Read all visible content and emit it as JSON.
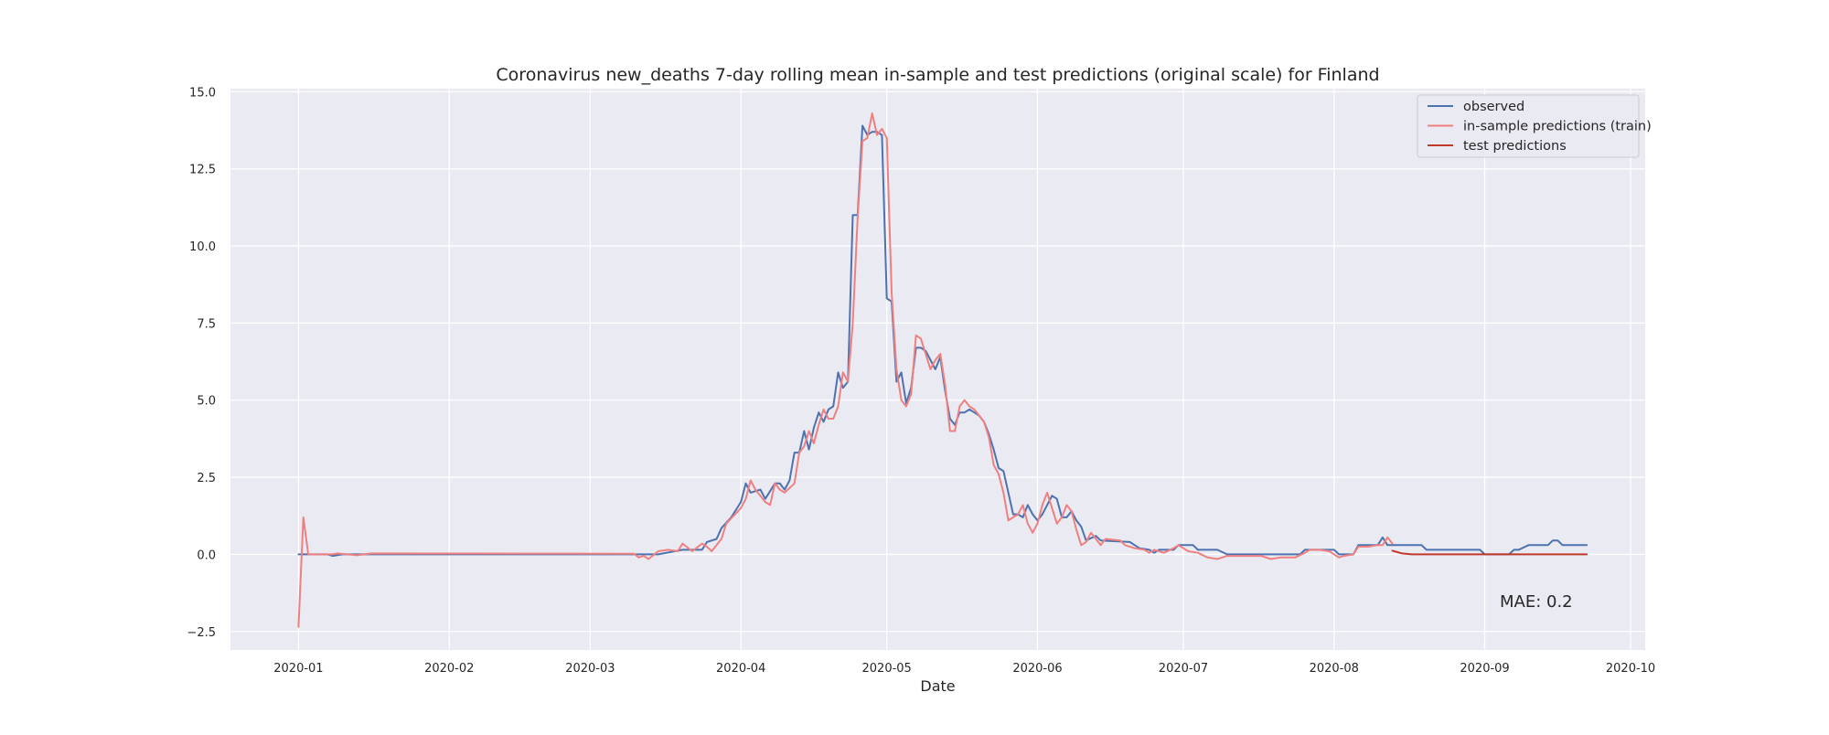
{
  "chart_data": {
    "type": "line",
    "title": "Coronavirus new_deaths 7-day rolling mean in-sample and test predictions (original scale) for Finland",
    "xlabel": "Date",
    "ylabel": "",
    "x_type": "date",
    "xlim": [
      "2019-12-18",
      "2020-10-04"
    ],
    "ylim": [
      -3.1,
      15.1
    ],
    "grid": true,
    "legend_position": "top-right",
    "x_ticks": [
      "2020-01",
      "2020-02",
      "2020-03",
      "2020-04",
      "2020-05",
      "2020-06",
      "2020-07",
      "2020-08",
      "2020-09",
      "2020-10"
    ],
    "y_ticks": [
      "−2.5",
      "0.0",
      "2.5",
      "5.0",
      "7.5",
      "10.0",
      "12.5",
      "15.0"
    ],
    "annotation": "MAE: 0.2",
    "series": [
      {
        "name": "observed",
        "color": "#4c72b0",
        "points": [
          [
            "2020-01-01",
            0
          ],
          [
            "2020-01-07",
            0
          ],
          [
            "2020-01-08",
            -0.05
          ],
          [
            "2020-01-10",
            0
          ],
          [
            "2020-03-15",
            0
          ],
          [
            "2020-03-20",
            0.15
          ],
          [
            "2020-03-24",
            0.15
          ],
          [
            "2020-03-25",
            0.4
          ],
          [
            "2020-03-27",
            0.5
          ],
          [
            "2020-03-28",
            0.85
          ],
          [
            "2020-03-30",
            1.2
          ],
          [
            "2020-04-01",
            1.7
          ],
          [
            "2020-04-02",
            2.3
          ],
          [
            "2020-04-03",
            2.0
          ],
          [
            "2020-04-05",
            2.1
          ],
          [
            "2020-04-06",
            1.8
          ],
          [
            "2020-04-08",
            2.3
          ],
          [
            "2020-04-09",
            2.3
          ],
          [
            "2020-04-10",
            2.1
          ],
          [
            "2020-04-11",
            2.4
          ],
          [
            "2020-04-12",
            3.3
          ],
          [
            "2020-04-13",
            3.3
          ],
          [
            "2020-04-14",
            4.0
          ],
          [
            "2020-04-15",
            3.4
          ],
          [
            "2020-04-16",
            4.1
          ],
          [
            "2020-04-17",
            4.6
          ],
          [
            "2020-04-18",
            4.3
          ],
          [
            "2020-04-19",
            4.7
          ],
          [
            "2020-04-20",
            4.8
          ],
          [
            "2020-04-21",
            5.9
          ],
          [
            "2020-04-22",
            5.4
          ],
          [
            "2020-04-23",
            5.6
          ],
          [
            "2020-04-24",
            11.0
          ],
          [
            "2020-04-25",
            11.0
          ],
          [
            "2020-04-26",
            13.9
          ],
          [
            "2020-04-27",
            13.6
          ],
          [
            "2020-04-28",
            13.7
          ],
          [
            "2020-04-29",
            13.7
          ],
          [
            "2020-04-30",
            13.6
          ],
          [
            "2020-05-01",
            8.3
          ],
          [
            "2020-05-02",
            8.2
          ],
          [
            "2020-05-03",
            5.6
          ],
          [
            "2020-05-04",
            5.9
          ],
          [
            "2020-05-05",
            4.9
          ],
          [
            "2020-05-06",
            5.4
          ],
          [
            "2020-05-07",
            6.7
          ],
          [
            "2020-05-08",
            6.7
          ],
          [
            "2020-05-09",
            6.6
          ],
          [
            "2020-05-10",
            6.3
          ],
          [
            "2020-05-11",
            6.0
          ],
          [
            "2020-05-12",
            6.4
          ],
          [
            "2020-05-13",
            5.3
          ],
          [
            "2020-05-14",
            4.4
          ],
          [
            "2020-05-15",
            4.2
          ],
          [
            "2020-05-16",
            4.6
          ],
          [
            "2020-05-17",
            4.6
          ],
          [
            "2020-05-18",
            4.7
          ],
          [
            "2020-05-19",
            4.6
          ],
          [
            "2020-05-20",
            4.5
          ],
          [
            "2020-05-21",
            4.3
          ],
          [
            "2020-05-22",
            3.9
          ],
          [
            "2020-05-23",
            3.4
          ],
          [
            "2020-05-24",
            2.8
          ],
          [
            "2020-05-25",
            2.7
          ],
          [
            "2020-05-26",
            2.0
          ],
          [
            "2020-05-27",
            1.3
          ],
          [
            "2020-05-28",
            1.3
          ],
          [
            "2020-05-29",
            1.2
          ],
          [
            "2020-05-30",
            1.6
          ],
          [
            "2020-05-31",
            1.3
          ],
          [
            "2020-06-01",
            1.1
          ],
          [
            "2020-06-02",
            1.3
          ],
          [
            "2020-06-03",
            1.6
          ],
          [
            "2020-06-04",
            1.9
          ],
          [
            "2020-06-05",
            1.8
          ],
          [
            "2020-06-06",
            1.2
          ],
          [
            "2020-06-07",
            1.2
          ],
          [
            "2020-06-08",
            1.4
          ],
          [
            "2020-06-09",
            1.1
          ],
          [
            "2020-06-10",
            0.9
          ],
          [
            "2020-06-11",
            0.45
          ],
          [
            "2020-06-13",
            0.6
          ],
          [
            "2020-06-14",
            0.45
          ],
          [
            "2020-06-20",
            0.4
          ],
          [
            "2020-06-21",
            0.3
          ],
          [
            "2020-06-22",
            0.2
          ],
          [
            "2020-06-24",
            0.15
          ],
          [
            "2020-06-25",
            0.05
          ],
          [
            "2020-06-26",
            0.15
          ],
          [
            "2020-06-29",
            0.15
          ],
          [
            "2020-06-30",
            0.3
          ],
          [
            "2020-07-03",
            0.3
          ],
          [
            "2020-07-04",
            0.15
          ],
          [
            "2020-07-08",
            0.15
          ],
          [
            "2020-07-10",
            0
          ],
          [
            "2020-07-25",
            0
          ],
          [
            "2020-07-26",
            0.15
          ],
          [
            "2020-08-01",
            0.15
          ],
          [
            "2020-08-02",
            0
          ],
          [
            "2020-08-05",
            0
          ],
          [
            "2020-08-06",
            0.3
          ],
          [
            "2020-08-10",
            0.3
          ],
          [
            "2020-08-11",
            0.55
          ],
          [
            "2020-08-12",
            0.3
          ],
          [
            "2020-08-19",
            0.3
          ],
          [
            "2020-08-20",
            0.15
          ],
          [
            "2020-08-31",
            0.15
          ],
          [
            "2020-09-01",
            0
          ],
          [
            "2020-09-06",
            0
          ],
          [
            "2020-09-07",
            0.15
          ],
          [
            "2020-09-08",
            0.15
          ],
          [
            "2020-09-10",
            0.3
          ],
          [
            "2020-09-14",
            0.3
          ],
          [
            "2020-09-15",
            0.45
          ],
          [
            "2020-09-16",
            0.45
          ],
          [
            "2020-09-17",
            0.3
          ],
          [
            "2020-09-22",
            0.3
          ]
        ]
      },
      {
        "name": "in-sample predictions (train)",
        "color": "#f08080",
        "points": [
          [
            "2020-01-01",
            -2.35
          ],
          [
            "2020-01-02",
            1.2
          ],
          [
            "2020-01-03",
            0
          ],
          [
            "2020-01-08",
            0
          ],
          [
            "2020-01-09",
            0.03
          ],
          [
            "2020-01-13",
            -0.03
          ],
          [
            "2020-01-16",
            0.03
          ],
          [
            "2020-03-10",
            0.02
          ],
          [
            "2020-03-11",
            -0.1
          ],
          [
            "2020-03-12",
            -0.05
          ],
          [
            "2020-03-13",
            -0.15
          ],
          [
            "2020-03-15",
            0.1
          ],
          [
            "2020-03-17",
            0.15
          ],
          [
            "2020-03-19",
            0.1
          ],
          [
            "2020-03-20",
            0.35
          ],
          [
            "2020-03-22",
            0.1
          ],
          [
            "2020-03-24",
            0.35
          ],
          [
            "2020-03-25",
            0.25
          ],
          [
            "2020-03-26",
            0.1
          ],
          [
            "2020-03-28",
            0.5
          ],
          [
            "2020-03-29",
            1.0
          ],
          [
            "2020-04-01",
            1.5
          ],
          [
            "2020-04-02",
            1.8
          ],
          [
            "2020-04-03",
            2.4
          ],
          [
            "2020-04-04",
            2.1
          ],
          [
            "2020-04-06",
            1.7
          ],
          [
            "2020-04-07",
            1.6
          ],
          [
            "2020-04-08",
            2.3
          ],
          [
            "2020-04-09",
            2.1
          ],
          [
            "2020-04-10",
            2.0
          ],
          [
            "2020-04-12",
            2.3
          ],
          [
            "2020-04-13",
            3.3
          ],
          [
            "2020-04-14",
            3.5
          ],
          [
            "2020-04-15",
            4.0
          ],
          [
            "2020-04-16",
            3.6
          ],
          [
            "2020-04-17",
            4.2
          ],
          [
            "2020-04-18",
            4.7
          ],
          [
            "2020-04-19",
            4.4
          ],
          [
            "2020-04-20",
            4.4
          ],
          [
            "2020-04-21",
            4.8
          ],
          [
            "2020-04-22",
            5.9
          ],
          [
            "2020-04-23",
            5.6
          ],
          [
            "2020-04-24",
            7.5
          ],
          [
            "2020-04-25",
            10.9
          ],
          [
            "2020-04-26",
            13.4
          ],
          [
            "2020-04-27",
            13.5
          ],
          [
            "2020-04-28",
            14.3
          ],
          [
            "2020-04-29",
            13.6
          ],
          [
            "2020-04-30",
            13.8
          ],
          [
            "2020-05-01",
            13.5
          ],
          [
            "2020-05-02",
            8.5
          ],
          [
            "2020-05-03",
            6.0
          ],
          [
            "2020-05-04",
            5.0
          ],
          [
            "2020-05-05",
            4.8
          ],
          [
            "2020-05-06",
            5.2
          ],
          [
            "2020-05-07",
            7.1
          ],
          [
            "2020-05-08",
            7.0
          ],
          [
            "2020-05-09",
            6.5
          ],
          [
            "2020-05-10",
            6.0
          ],
          [
            "2020-05-11",
            6.3
          ],
          [
            "2020-05-12",
            6.5
          ],
          [
            "2020-05-13",
            5.5
          ],
          [
            "2020-05-14",
            4.0
          ],
          [
            "2020-05-15",
            4.0
          ],
          [
            "2020-05-16",
            4.8
          ],
          [
            "2020-05-17",
            5.0
          ],
          [
            "2020-05-18",
            4.8
          ],
          [
            "2020-05-19",
            4.7
          ],
          [
            "2020-05-20",
            4.5
          ],
          [
            "2020-05-21",
            4.3
          ],
          [
            "2020-05-22",
            3.8
          ],
          [
            "2020-05-23",
            2.9
          ],
          [
            "2020-05-24",
            2.6
          ],
          [
            "2020-05-25",
            2.0
          ],
          [
            "2020-05-26",
            1.1
          ],
          [
            "2020-05-27",
            1.2
          ],
          [
            "2020-05-28",
            1.3
          ],
          [
            "2020-05-29",
            1.6
          ],
          [
            "2020-05-30",
            1.0
          ],
          [
            "2020-05-31",
            0.7
          ],
          [
            "2020-06-01",
            1.0
          ],
          [
            "2020-06-02",
            1.6
          ],
          [
            "2020-06-03",
            2.0
          ],
          [
            "2020-06-04",
            1.5
          ],
          [
            "2020-06-05",
            1.0
          ],
          [
            "2020-06-06",
            1.2
          ],
          [
            "2020-06-07",
            1.6
          ],
          [
            "2020-06-08",
            1.4
          ],
          [
            "2020-06-09",
            0.8
          ],
          [
            "2020-06-10",
            0.3
          ],
          [
            "2020-06-11",
            0.4
          ],
          [
            "2020-06-12",
            0.7
          ],
          [
            "2020-06-13",
            0.5
          ],
          [
            "2020-06-14",
            0.3
          ],
          [
            "2020-06-15",
            0.5
          ],
          [
            "2020-06-18",
            0.45
          ],
          [
            "2020-06-19",
            0.3
          ],
          [
            "2020-06-21",
            0.2
          ],
          [
            "2020-06-23",
            0.15
          ],
          [
            "2020-06-24",
            0.05
          ],
          [
            "2020-06-25",
            0.15
          ],
          [
            "2020-06-27",
            0.05
          ],
          [
            "2020-06-29",
            0.2
          ],
          [
            "2020-06-30",
            0.3
          ],
          [
            "2020-07-02",
            0.1
          ],
          [
            "2020-07-04",
            0.05
          ],
          [
            "2020-07-06",
            -0.1
          ],
          [
            "2020-07-08",
            -0.15
          ],
          [
            "2020-07-10",
            -0.05
          ],
          [
            "2020-07-17",
            -0.05
          ],
          [
            "2020-07-19",
            -0.15
          ],
          [
            "2020-07-21",
            -0.1
          ],
          [
            "2020-07-24",
            -0.1
          ],
          [
            "2020-07-26",
            0.05
          ],
          [
            "2020-07-27",
            0.15
          ],
          [
            "2020-07-29",
            0.15
          ],
          [
            "2020-07-31",
            0.1
          ],
          [
            "2020-08-02",
            -0.1
          ],
          [
            "2020-08-03",
            -0.05
          ],
          [
            "2020-08-05",
            0.0
          ],
          [
            "2020-08-06",
            0.25
          ],
          [
            "2020-08-08",
            0.25
          ],
          [
            "2020-08-10",
            0.3
          ],
          [
            "2020-08-11",
            0.3
          ],
          [
            "2020-08-12",
            0.55
          ],
          [
            "2020-08-13",
            0.35
          ]
        ]
      },
      {
        "name": "test predictions",
        "color": "#c0392b",
        "points": [
          [
            "2020-08-13",
            0.12
          ],
          [
            "2020-08-15",
            0.03
          ],
          [
            "2020-08-17",
            0
          ],
          [
            "2020-09-22",
            0
          ]
        ]
      }
    ]
  }
}
